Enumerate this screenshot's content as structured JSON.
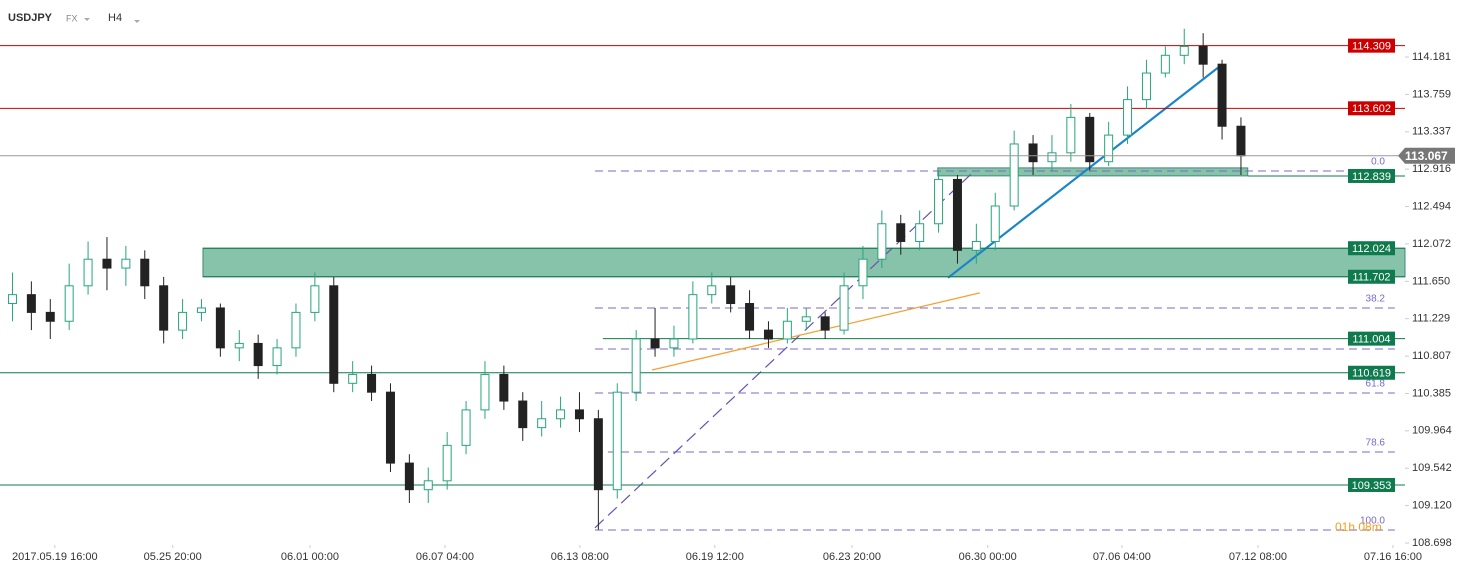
{
  "chart_data": {
    "type": "candlestick",
    "symbol": "USDJPY",
    "market": "FX",
    "timeframe": "H4",
    "countdown": "01h 08m",
    "up_color": "#26a67a",
    "down_color": "#222222",
    "x": [
      2,
      7,
      12,
      17,
      22,
      27,
      32,
      37,
      42,
      47,
      52,
      57,
      62,
      67,
      72,
      77,
      82,
      87,
      92,
      97,
      102,
      107,
      112,
      117,
      122,
      127,
      132,
      137,
      142,
      147,
      152,
      157,
      162,
      167,
      172,
      177,
      182,
      187,
      192,
      197,
      202,
      207,
      212,
      217,
      222,
      227,
      232,
      237,
      242,
      247,
      252,
      257,
      262,
      267,
      272,
      277,
      282,
      287,
      292,
      297,
      302,
      307,
      312,
      317,
      322,
      327
    ],
    "open": [
      111.4,
      111.5,
      111.3,
      111.2,
      111.6,
      111.9,
      111.8,
      111.9,
      111.6,
      111.1,
      111.3,
      111.35,
      110.9,
      110.95,
      110.7,
      110.9,
      111.3,
      111.6,
      110.5,
      110.6,
      110.4,
      109.6,
      109.3,
      109.4,
      109.8,
      110.2,
      110.6,
      110.3,
      110.0,
      110.1,
      110.2,
      110.1,
      109.3,
      110.4,
      111.0,
      110.9,
      111.0,
      111.5,
      111.6,
      111.4,
      111.1,
      111.0,
      111.2,
      111.25,
      111.1,
      111.6,
      111.9,
      112.3,
      112.1,
      112.3,
      112.8,
      112.0,
      112.1,
      112.5,
      113.2,
      113.0,
      113.1,
      113.5,
      113.0,
      113.3,
      113.7,
      114.0,
      114.2,
      114.3,
      114.1,
      113.4
    ],
    "high": [
      111.75,
      111.65,
      111.45,
      111.85,
      112.1,
      112.15,
      112.05,
      112.0,
      111.7,
      111.45,
      111.45,
      111.4,
      111.1,
      111.05,
      111.0,
      111.4,
      111.75,
      111.7,
      110.75,
      110.7,
      110.5,
      109.7,
      109.55,
      109.95,
      110.3,
      110.75,
      110.7,
      110.4,
      110.3,
      110.35,
      110.4,
      110.2,
      110.5,
      111.1,
      111.35,
      111.15,
      111.65,
      111.75,
      111.7,
      111.55,
      111.2,
      111.35,
      111.35,
      111.3,
      111.75,
      112.05,
      112.45,
      112.4,
      112.45,
      112.9,
      112.85,
      112.3,
      112.65,
      113.35,
      113.3,
      113.3,
      113.65,
      113.55,
      113.45,
      113.85,
      114.15,
      114.3,
      114.5,
      114.45,
      114.15,
      113.5
    ],
    "low": [
      111.2,
      111.1,
      111.0,
      111.1,
      111.5,
      111.55,
      111.6,
      111.45,
      110.95,
      111.0,
      111.2,
      110.8,
      110.75,
      110.55,
      110.6,
      110.8,
      111.2,
      110.4,
      110.4,
      110.3,
      109.5,
      109.15,
      109.15,
      109.3,
      109.7,
      110.1,
      110.2,
      109.85,
      109.9,
      110.0,
      109.95,
      108.85,
      109.2,
      110.3,
      110.8,
      110.8,
      110.95,
      111.4,
      111.3,
      111.0,
      110.9,
      110.95,
      111.1,
      111.0,
      111.05,
      111.45,
      111.8,
      111.95,
      112.0,
      112.2,
      111.85,
      111.85,
      112.0,
      112.45,
      112.85,
      112.9,
      113.0,
      112.9,
      112.95,
      113.2,
      113.6,
      113.95,
      114.1,
      113.95,
      113.25,
      112.85
    ],
    "close": [
      111.5,
      111.3,
      111.2,
      111.6,
      111.9,
      111.8,
      111.9,
      111.6,
      111.1,
      111.3,
      111.35,
      110.9,
      110.95,
      110.7,
      110.9,
      111.3,
      111.6,
      110.5,
      110.6,
      110.4,
      109.6,
      109.3,
      109.4,
      109.8,
      110.2,
      110.6,
      110.3,
      110.0,
      110.1,
      110.2,
      110.1,
      109.3,
      110.4,
      111.0,
      110.9,
      111.0,
      111.5,
      111.6,
      111.4,
      111.1,
      111.0,
      111.2,
      111.25,
      111.1,
      111.6,
      111.9,
      112.3,
      112.1,
      112.3,
      112.8,
      112.0,
      112.1,
      112.5,
      113.2,
      113.0,
      113.1,
      113.5,
      113.0,
      113.3,
      113.7,
      114.0,
      114.2,
      114.3,
      114.1,
      113.4,
      113.067
    ],
    "xlim": [
      -1.3,
      370.4
    ],
    "ylim": [
      108.676,
      114.824
    ],
    "xticks": [
      {
        "value": 13.2,
        "label": "2017.05.19  16:00"
      },
      {
        "value": 44.4,
        "label": "05.25 20:00"
      },
      {
        "value": 80.7,
        "label": "06.01 00:00"
      },
      {
        "value": 116.4,
        "label": "06.07 04:00"
      },
      {
        "value": 152.1,
        "label": "06.13 08:00"
      },
      {
        "value": 187.8,
        "label": "06.19 12:00"
      },
      {
        "value": 224.1,
        "label": "06.23 20:00"
      },
      {
        "value": 260.0,
        "label": "06.30 00:00"
      },
      {
        "value": 295.5,
        "label": "07.06 04:00"
      },
      {
        "value": 331.5,
        "label": "07.12 08:00"
      },
      {
        "value": 367.2,
        "label": "07.16 16:00"
      }
    ],
    "yticks": [
      114.181,
      113.759,
      113.337,
      112.916,
      112.494,
      112.072,
      {
        "value": 111.65,
        "label": "111.650"
      },
      111.229,
      110.807,
      110.385,
      109.964,
      109.542,
      {
        "value": 109.12,
        "label": "109.120"
      },
      108.698
    ],
    "last_price": {
      "value": 113.067,
      "color": "#777777"
    },
    "levels": [
      {
        "value": 114.309,
        "color": "#cc0000"
      },
      {
        "value": 113.602,
        "color": "#cc0000"
      },
      {
        "value": 112.839,
        "color": "#0f7a4d",
        "x_start": 328.8
      },
      {
        "value": 112.024,
        "color": "#0f7a4d",
        "x_start": 52.4
      },
      {
        "value": 111.702,
        "color": "#0f7a4d",
        "x_start": 52.4
      },
      {
        "value": 111.004,
        "color": "#0f7a4d",
        "x_start": 158.2
      },
      {
        "value": 110.619,
        "color": "#0f7a4d"
      },
      {
        "value": 109.353,
        "color": "#0f7a4d"
      }
    ],
    "zones": [
      {
        "x": [
          52.4,
          370.4
        ],
        "y": [
          111.702,
          112.024
        ],
        "color": "#5fae8d"
      },
      {
        "x": [
          246.8,
          328.8
        ],
        "y": [
          112.84,
          112.93
        ],
        "color": "#5fae8d"
      }
    ],
    "fib": {
      "x": [
        156.1,
        367.7
      ],
      "color": "#7b68c8",
      "levels": [
        {
          "value": 0,
          "label": "0.0",
          "price": 112.895
        },
        {
          "value": 38.2,
          "price": 111.35
        },
        {
          "value": 50,
          "price": 110.887
        },
        {
          "value": 61.8,
          "price": 110.39
        },
        {
          "value": 78.6,
          "price": 109.725
        },
        {
          "value": 100,
          "label": "100.0",
          "price": 108.845
        }
      ]
    },
    "trendlines": [
      {
        "x": [
          156.1,
          256.6
        ],
        "y": [
          108.87,
          112.9
        ],
        "color": "#6a4fb5",
        "dash": true
      },
      {
        "x": [
          171.2,
          257.9
        ],
        "y": [
          110.65,
          111.52
        ],
        "color": "#f5a030",
        "dash": false
      },
      {
        "x": [
          249.5,
          320.9
        ],
        "y": [
          111.69,
          114.06
        ],
        "color": "#1a86c8",
        "dash": false
      }
    ]
  }
}
